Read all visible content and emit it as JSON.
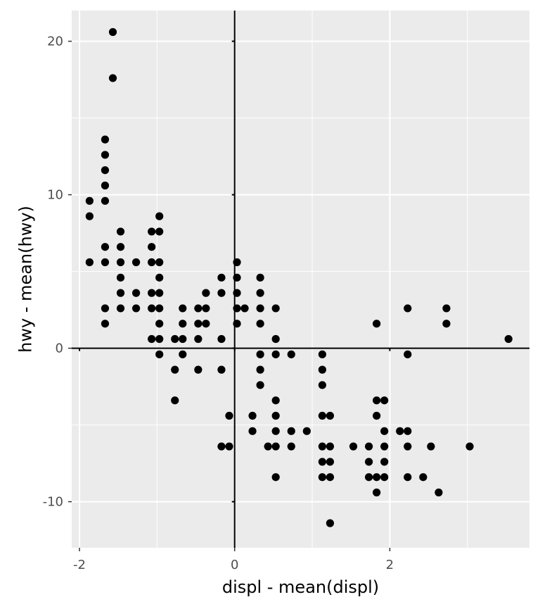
{
  "chart_data": {
    "type": "scatter",
    "title": "",
    "xlabel": "displ - mean(displ)",
    "ylabel": "hwy - mean(hwy)",
    "xlim": [
      -2.1,
      3.8
    ],
    "ylim": [
      -13,
      22
    ],
    "x_ticks": [
      -2,
      0,
      2
    ],
    "x_tick_labels": [
      "-2",
      "0",
      "2"
    ],
    "y_ticks": [
      -10,
      0,
      10,
      20
    ],
    "y_tick_labels": [
      "-10",
      "0",
      "10",
      "20"
    ],
    "grid": true,
    "reference_lines": {
      "x": 0,
      "y": 0
    },
    "colors": {
      "panel": "#ebebeb",
      "grid": "#ffffff",
      "points": "#000000",
      "axis_text": "#4d4d4d"
    },
    "points": [
      {
        "x": -1.57,
        "y": 20.6
      },
      {
        "x": -1.57,
        "y": 17.6
      },
      {
        "x": -1.67,
        "y": 13.6
      },
      {
        "x": -1.67,
        "y": 12.6
      },
      {
        "x": -1.67,
        "y": 11.6
      },
      {
        "x": -1.67,
        "y": 10.6
      },
      {
        "x": -1.67,
        "y": 9.6
      },
      {
        "x": -1.67,
        "y": 6.6
      },
      {
        "x": -1.67,
        "y": 5.6
      },
      {
        "x": -1.67,
        "y": 2.6
      },
      {
        "x": -1.67,
        "y": 1.6
      },
      {
        "x": -1.87,
        "y": 9.6
      },
      {
        "x": -1.87,
        "y": 8.6
      },
      {
        "x": -1.87,
        "y": 5.6
      },
      {
        "x": -1.47,
        "y": 7.6
      },
      {
        "x": -1.47,
        "y": 6.6
      },
      {
        "x": -1.47,
        "y": 5.6
      },
      {
        "x": -1.47,
        "y": 4.6
      },
      {
        "x": -1.47,
        "y": 3.6
      },
      {
        "x": -1.47,
        "y": 2.6
      },
      {
        "x": -1.27,
        "y": 5.6
      },
      {
        "x": -1.27,
        "y": 3.6
      },
      {
        "x": -1.27,
        "y": 2.6
      },
      {
        "x": -1.07,
        "y": 7.6
      },
      {
        "x": -1.07,
        "y": 6.6
      },
      {
        "x": -1.07,
        "y": 5.6
      },
      {
        "x": -1.07,
        "y": 3.6
      },
      {
        "x": -1.07,
        "y": 2.6
      },
      {
        "x": -1.07,
        "y": 0.6
      },
      {
        "x": -0.97,
        "y": 8.6
      },
      {
        "x": -0.97,
        "y": 7.6
      },
      {
        "x": -0.97,
        "y": 5.6
      },
      {
        "x": -0.97,
        "y": 4.6
      },
      {
        "x": -0.97,
        "y": 3.6
      },
      {
        "x": -0.97,
        "y": 2.6
      },
      {
        "x": -0.97,
        "y": 1.6
      },
      {
        "x": -0.97,
        "y": 0.6
      },
      {
        "x": -0.97,
        "y": -0.4
      },
      {
        "x": -0.77,
        "y": 0.6
      },
      {
        "x": -0.77,
        "y": -1.4
      },
      {
        "x": -0.77,
        "y": -3.4
      },
      {
        "x": -0.67,
        "y": 2.6
      },
      {
        "x": -0.67,
        "y": 1.6
      },
      {
        "x": -0.67,
        "y": 0.6
      },
      {
        "x": -0.67,
        "y": -0.4
      },
      {
        "x": -0.47,
        "y": 2.6
      },
      {
        "x": -0.47,
        "y": 1.6
      },
      {
        "x": -0.47,
        "y": 0.6
      },
      {
        "x": -0.47,
        "y": -1.4
      },
      {
        "x": -0.37,
        "y": 3.6
      },
      {
        "x": -0.37,
        "y": 2.6
      },
      {
        "x": -0.37,
        "y": 1.6
      },
      {
        "x": -0.17,
        "y": 4.6
      },
      {
        "x": -0.17,
        "y": 3.6
      },
      {
        "x": -0.17,
        "y": 0.6
      },
      {
        "x": -0.17,
        "y": -1.4
      },
      {
        "x": -0.17,
        "y": -6.4
      },
      {
        "x": -0.07,
        "y": -4.4
      },
      {
        "x": -0.07,
        "y": -6.4
      },
      {
        "x": 0.03,
        "y": 5.6
      },
      {
        "x": 0.03,
        "y": 4.6
      },
      {
        "x": 0.03,
        "y": 3.6
      },
      {
        "x": 0.03,
        "y": 2.6
      },
      {
        "x": 0.03,
        "y": 1.6
      },
      {
        "x": 0.13,
        "y": 2.6
      },
      {
        "x": 0.23,
        "y": -4.4
      },
      {
        "x": 0.23,
        "y": -5.4
      },
      {
        "x": 0.33,
        "y": 4.6
      },
      {
        "x": 0.33,
        "y": 3.6
      },
      {
        "x": 0.33,
        "y": 2.6
      },
      {
        "x": 0.33,
        "y": 1.6
      },
      {
        "x": 0.33,
        "y": -0.4
      },
      {
        "x": 0.33,
        "y": -1.4
      },
      {
        "x": 0.33,
        "y": -2.4
      },
      {
        "x": 0.43,
        "y": -6.4
      },
      {
        "x": 0.53,
        "y": 2.6
      },
      {
        "x": 0.53,
        "y": 0.6
      },
      {
        "x": 0.53,
        "y": -0.4
      },
      {
        "x": 0.53,
        "y": -3.4
      },
      {
        "x": 0.53,
        "y": -4.4
      },
      {
        "x": 0.53,
        "y": -5.4
      },
      {
        "x": 0.53,
        "y": -6.4
      },
      {
        "x": 0.53,
        "y": -8.4
      },
      {
        "x": 0.73,
        "y": -0.4
      },
      {
        "x": 0.73,
        "y": -5.4
      },
      {
        "x": 0.73,
        "y": -6.4
      },
      {
        "x": 0.93,
        "y": -5.4
      },
      {
        "x": 1.13,
        "y": -0.4
      },
      {
        "x": 1.13,
        "y": -1.4
      },
      {
        "x": 1.13,
        "y": -2.4
      },
      {
        "x": 1.13,
        "y": -4.4
      },
      {
        "x": 1.13,
        "y": -6.4
      },
      {
        "x": 1.13,
        "y": -7.4
      },
      {
        "x": 1.13,
        "y": -8.4
      },
      {
        "x": 1.23,
        "y": -4.4
      },
      {
        "x": 1.23,
        "y": -6.4
      },
      {
        "x": 1.23,
        "y": -7.4
      },
      {
        "x": 1.23,
        "y": -8.4
      },
      {
        "x": 1.23,
        "y": -11.4
      },
      {
        "x": 1.53,
        "y": -6.4
      },
      {
        "x": 1.73,
        "y": -6.4
      },
      {
        "x": 1.73,
        "y": -7.4
      },
      {
        "x": 1.73,
        "y": -8.4
      },
      {
        "x": 1.83,
        "y": 1.6
      },
      {
        "x": 1.83,
        "y": -3.4
      },
      {
        "x": 1.83,
        "y": -4.4
      },
      {
        "x": 1.83,
        "y": -8.4
      },
      {
        "x": 1.83,
        "y": -9.4
      },
      {
        "x": 1.93,
        "y": -3.4
      },
      {
        "x": 1.93,
        "y": -5.4
      },
      {
        "x": 1.93,
        "y": -6.4
      },
      {
        "x": 1.93,
        "y": -7.4
      },
      {
        "x": 1.93,
        "y": -8.4
      },
      {
        "x": 2.13,
        "y": -5.4
      },
      {
        "x": 2.23,
        "y": 2.6
      },
      {
        "x": 2.23,
        "y": -0.4
      },
      {
        "x": 2.23,
        "y": -5.4
      },
      {
        "x": 2.23,
        "y": -6.4
      },
      {
        "x": 2.23,
        "y": -8.4
      },
      {
        "x": 2.43,
        "y": -8.4
      },
      {
        "x": 2.53,
        "y": -6.4
      },
      {
        "x": 2.63,
        "y": -9.4
      },
      {
        "x": 2.73,
        "y": 2.6
      },
      {
        "x": 2.73,
        "y": 1.6
      },
      {
        "x": 3.03,
        "y": -6.4
      },
      {
        "x": 3.53,
        "y": 0.6
      }
    ]
  }
}
